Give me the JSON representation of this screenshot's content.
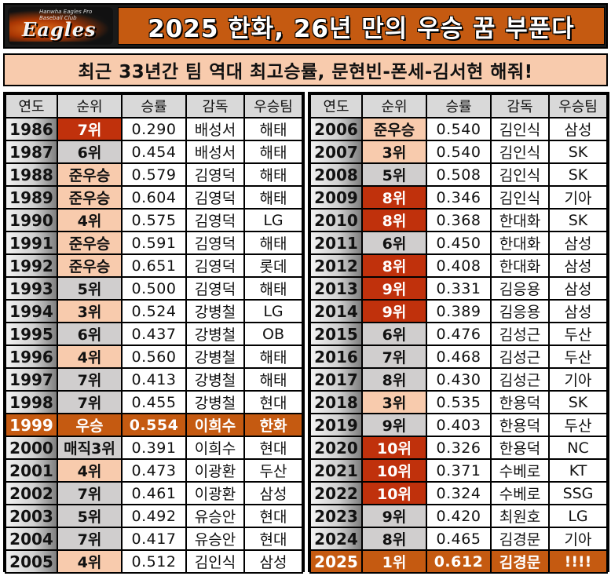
{
  "header": {
    "logo": {
      "wordmark": "Eagles",
      "sub": "Hanwha Eagles Pro Baseball Club"
    },
    "title": "2025 한화, 26년 만의 우승 꿈 부푼다"
  },
  "subtitle": "최근 33년간 팀 역대 최고승률, 문현빈-폰세-김서현 해줘!",
  "columns": [
    "연도",
    "순위",
    "승률",
    "감독",
    "우승팀"
  ],
  "colors": {
    "accent": "#c55a11",
    "light_rank": "#f8cbad",
    "grey_rank": "#d0cece",
    "red_rank": "#c0310c"
  },
  "left_rows": [
    {
      "year": "1986",
      "rank": "7위",
      "pct": "0.290",
      "manager": "배성서",
      "champion": "해태",
      "style": "red"
    },
    {
      "year": "1987",
      "rank": "6위",
      "pct": "0.454",
      "manager": "배성서",
      "champion": "해태",
      "style": "grey"
    },
    {
      "year": "1988",
      "rank": "준우승",
      "pct": "0.579",
      "manager": "김영덕",
      "champion": "해태",
      "style": "light"
    },
    {
      "year": "1989",
      "rank": "준우승",
      "pct": "0.604",
      "manager": "김영덕",
      "champion": "해태",
      "style": "light"
    },
    {
      "year": "1990",
      "rank": "4위",
      "pct": "0.575",
      "manager": "김영덕",
      "champion": "LG",
      "style": "light"
    },
    {
      "year": "1991",
      "rank": "준우승",
      "pct": "0.591",
      "manager": "김영덕",
      "champion": "해태",
      "style": "light"
    },
    {
      "year": "1992",
      "rank": "준우승",
      "pct": "0.651",
      "manager": "김영덕",
      "champion": "롯데",
      "style": "light"
    },
    {
      "year": "1993",
      "rank": "5위",
      "pct": "0.500",
      "manager": "김영덕",
      "champion": "해태",
      "style": "grey"
    },
    {
      "year": "1994",
      "rank": "3위",
      "pct": "0.524",
      "manager": "강병철",
      "champion": "LG",
      "style": "light"
    },
    {
      "year": "1995",
      "rank": "6위",
      "pct": "0.437",
      "manager": "강병철",
      "champion": "OB",
      "style": "grey"
    },
    {
      "year": "1996",
      "rank": "4위",
      "pct": "0.560",
      "manager": "강병철",
      "champion": "해태",
      "style": "light"
    },
    {
      "year": "1997",
      "rank": "7위",
      "pct": "0.413",
      "manager": "강병철",
      "champion": "해태",
      "style": "grey"
    },
    {
      "year": "1998",
      "rank": "7위",
      "pct": "0.455",
      "manager": "강병철",
      "champion": "현대",
      "style": "grey"
    },
    {
      "year": "1999",
      "rank": "우승",
      "pct": "0.554",
      "manager": "이희수",
      "champion": "한화",
      "style": "highlight"
    },
    {
      "year": "2000",
      "rank": "매직3위",
      "pct": "0.391",
      "manager": "이희수",
      "champion": "현대",
      "style": "grey"
    },
    {
      "year": "2001",
      "rank": "4위",
      "pct": "0.473",
      "manager": "이광환",
      "champion": "두산",
      "style": "light"
    },
    {
      "year": "2002",
      "rank": "7위",
      "pct": "0.461",
      "manager": "이광환",
      "champion": "삼성",
      "style": "grey"
    },
    {
      "year": "2003",
      "rank": "5위",
      "pct": "0.492",
      "manager": "유승안",
      "champion": "현대",
      "style": "grey"
    },
    {
      "year": "2004",
      "rank": "7위",
      "pct": "0.417",
      "manager": "유승안",
      "champion": "현대",
      "style": "grey"
    },
    {
      "year": "2005",
      "rank": "4위",
      "pct": "0.512",
      "manager": "김인식",
      "champion": "삼성",
      "style": "light"
    }
  ],
  "right_rows": [
    {
      "year": "2006",
      "rank": "준우승",
      "pct": "0.540",
      "manager": "김인식",
      "champion": "삼성",
      "style": "light"
    },
    {
      "year": "2007",
      "rank": "3위",
      "pct": "0.540",
      "manager": "김인식",
      "champion": "SK",
      "style": "light"
    },
    {
      "year": "2008",
      "rank": "5위",
      "pct": "0.508",
      "manager": "김인식",
      "champion": "SK",
      "style": "grey"
    },
    {
      "year": "2009",
      "rank": "8위",
      "pct": "0.346",
      "manager": "김인식",
      "champion": "기아",
      "style": "red"
    },
    {
      "year": "2010",
      "rank": "8위",
      "pct": "0.368",
      "manager": "한대화",
      "champion": "SK",
      "style": "red"
    },
    {
      "year": "2011",
      "rank": "6위",
      "pct": "0.450",
      "manager": "한대화",
      "champion": "삼성",
      "style": "grey"
    },
    {
      "year": "2012",
      "rank": "8위",
      "pct": "0.408",
      "manager": "한대화",
      "champion": "삼성",
      "style": "red"
    },
    {
      "year": "2013",
      "rank": "9위",
      "pct": "0.331",
      "manager": "김응용",
      "champion": "삼성",
      "style": "red"
    },
    {
      "year": "2014",
      "rank": "9위",
      "pct": "0.389",
      "manager": "김응용",
      "champion": "삼성",
      "style": "red"
    },
    {
      "year": "2015",
      "rank": "6위",
      "pct": "0.476",
      "manager": "김성근",
      "champion": "두산",
      "style": "grey"
    },
    {
      "year": "2016",
      "rank": "7위",
      "pct": "0.468",
      "manager": "김성근",
      "champion": "두산",
      "style": "grey"
    },
    {
      "year": "2017",
      "rank": "8위",
      "pct": "0.430",
      "manager": "김성근",
      "champion": "기아",
      "style": "grey"
    },
    {
      "year": "2018",
      "rank": "3위",
      "pct": "0.535",
      "manager": "한용덕",
      "champion": "SK",
      "style": "light"
    },
    {
      "year": "2019",
      "rank": "9위",
      "pct": "0.403",
      "manager": "한용덕",
      "champion": "두산",
      "style": "grey"
    },
    {
      "year": "2020",
      "rank": "10위",
      "pct": "0.326",
      "manager": "한용덕",
      "champion": "NC",
      "style": "red"
    },
    {
      "year": "2021",
      "rank": "10위",
      "pct": "0.371",
      "manager": "수베로",
      "champion": "KT",
      "style": "red"
    },
    {
      "year": "2022",
      "rank": "10위",
      "pct": "0.324",
      "manager": "수베로",
      "champion": "SSG",
      "style": "red"
    },
    {
      "year": "2023",
      "rank": "9위",
      "pct": "0.420",
      "manager": "최원호",
      "champion": "LG",
      "style": "grey"
    },
    {
      "year": "2024",
      "rank": "8위",
      "pct": "0.465",
      "manager": "김경문",
      "champion": "기아",
      "style": "grey"
    },
    {
      "year": "2025",
      "rank": "1위",
      "pct": "0.612",
      "manager": "김경문",
      "champion": "!!!!",
      "style": "highlight"
    }
  ]
}
